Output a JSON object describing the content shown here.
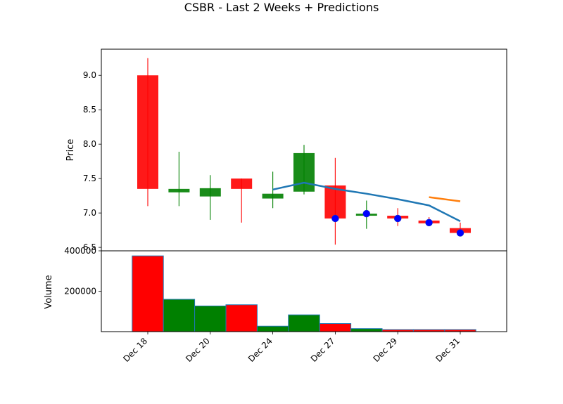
{
  "chart_data": {
    "title": "CSBR - Last 2 Weeks + Predictions",
    "type": "candlestick",
    "colors": {
      "up": "#008000",
      "down": "#ff0000",
      "prediction_line": "#1f77b4",
      "prediction_alt": "#ff7f0e",
      "marker": "#0000ff"
    },
    "price_panel": {
      "ylabel": "Price",
      "ylim": [
        6.45,
        9.38
      ],
      "yticks": [
        6.5,
        7.0,
        7.5,
        8.0,
        8.5,
        9.0
      ],
      "candles": [
        {
          "open": 9.0,
          "close": 7.35,
          "high": 9.25,
          "low": 7.1,
          "color": "red"
        },
        {
          "open": 7.3,
          "close": 7.35,
          "high": 7.89,
          "low": 7.1,
          "color": "green"
        },
        {
          "open": 7.24,
          "close": 7.36,
          "high": 7.55,
          "low": 6.9,
          "color": "green"
        },
        {
          "open": 7.5,
          "close": 7.35,
          "high": 7.5,
          "low": 6.86,
          "color": "red"
        },
        {
          "open": 7.21,
          "close": 7.28,
          "high": 7.6,
          "low": 7.07,
          "color": "green"
        },
        {
          "open": 7.31,
          "close": 7.87,
          "high": 7.99,
          "low": 7.27,
          "color": "green"
        },
        {
          "open": 7.4,
          "close": 6.92,
          "high": 7.8,
          "low": 6.54,
          "color": "red"
        },
        {
          "open": 6.96,
          "close": 6.99,
          "high": 7.18,
          "low": 6.77,
          "color": "green"
        },
        {
          "open": 6.96,
          "close": 6.92,
          "high": 7.07,
          "low": 6.81,
          "color": "red"
        },
        {
          "open": 6.89,
          "close": 6.85,
          "high": 6.94,
          "low": 6.82,
          "color": "red"
        },
        {
          "open": 6.78,
          "close": 6.71,
          "high": 6.86,
          "low": 6.7,
          "color": "red"
        }
      ],
      "prediction_line": {
        "x": [
          4,
          5,
          6,
          7,
          8,
          9,
          10
        ],
        "y": [
          7.34,
          7.44,
          7.35,
          7.28,
          7.2,
          7.11,
          6.88
        ]
      },
      "prediction_alt": {
        "x": [
          9,
          10
        ],
        "y": [
          7.23,
          7.17
        ]
      },
      "markers": {
        "x": [
          6,
          7,
          8,
          9,
          10
        ],
        "y": [
          6.92,
          6.99,
          6.92,
          6.86,
          6.71
        ]
      }
    },
    "volume_panel": {
      "ylabel": "Volume",
      "ylim": [
        0,
        400000
      ],
      "yticks": [
        200000,
        400000
      ],
      "yticklabels": [
        "200000",
        "400000"
      ],
      "bars": [
        {
          "value": 375000,
          "color": "red"
        },
        {
          "value": 160000,
          "color": "green"
        },
        {
          "value": 127000,
          "color": "green"
        },
        {
          "value": 133000,
          "color": "red"
        },
        {
          "value": 27000,
          "color": "green"
        },
        {
          "value": 83000,
          "color": "green"
        },
        {
          "value": 40000,
          "color": "red"
        },
        {
          "value": 15000,
          "color": "green"
        },
        {
          "value": 10000,
          "color": "red"
        },
        {
          "value": 10000,
          "color": "red"
        },
        {
          "value": 10000,
          "color": "red"
        }
      ]
    },
    "xticks": [
      {
        "index": 0,
        "label": "Dec 18"
      },
      {
        "index": 2,
        "label": "Dec 20"
      },
      {
        "index": 4,
        "label": "Dec 24"
      },
      {
        "index": 6,
        "label": "Dec 27"
      },
      {
        "index": 8,
        "label": "Dec 29"
      },
      {
        "index": 10,
        "label": "Dec 31"
      }
    ]
  }
}
